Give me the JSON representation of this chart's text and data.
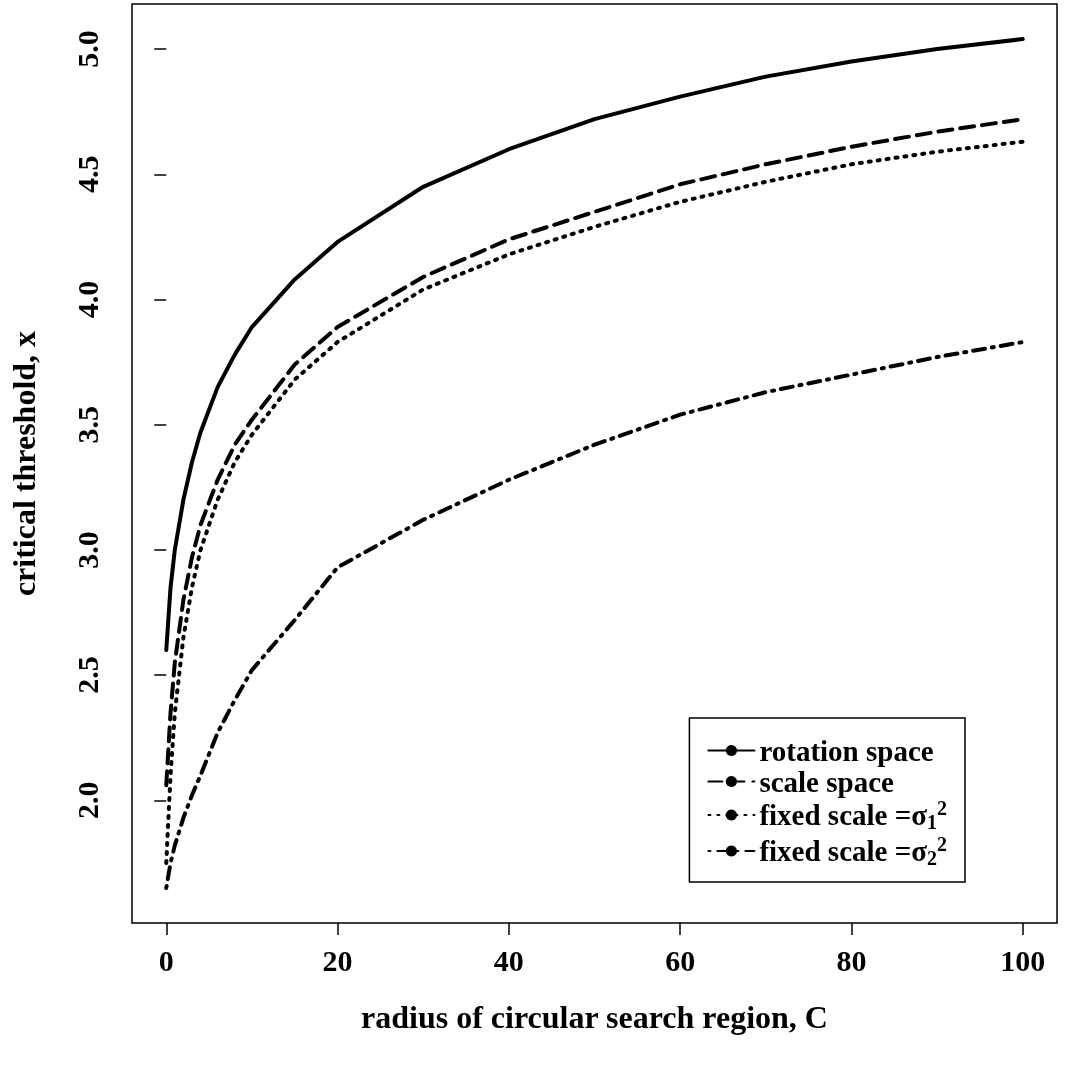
{
  "chart_data": {
    "type": "line",
    "xlabel": "radius of circular search region, C",
    "ylabel": "critical threshold, x",
    "x": [
      0,
      0.5,
      1,
      2,
      3,
      4,
      6,
      8,
      10,
      15,
      20,
      30,
      40,
      50,
      60,
      70,
      80,
      90,
      100
    ],
    "series": [
      {
        "name": "rotation space",
        "color": "#000000",
        "line_style": "solid",
        "values": [
          2.6,
          2.85,
          3.0,
          3.2,
          3.35,
          3.47,
          3.65,
          3.78,
          3.89,
          4.08,
          4.23,
          4.45,
          4.6,
          4.72,
          4.81,
          4.89,
          4.95,
          5.0,
          5.04
        ]
      },
      {
        "name": "scale space",
        "color": "#000000",
        "line_style": "dashed",
        "values": [
          2.06,
          2.35,
          2.55,
          2.8,
          2.97,
          3.1,
          3.28,
          3.42,
          3.52,
          3.74,
          3.89,
          4.09,
          4.24,
          4.35,
          4.46,
          4.54,
          4.61,
          4.67,
          4.72
        ]
      },
      {
        "name": "fixed scale =σ$_{1}$$^{2}$",
        "color": "#000000",
        "line_style": "dotted",
        "values": [
          1.75,
          2.1,
          2.35,
          2.65,
          2.85,
          3.0,
          3.2,
          3.35,
          3.46,
          3.68,
          3.83,
          4.04,
          4.18,
          4.29,
          4.39,
          4.47,
          4.54,
          4.59,
          4.63
        ]
      },
      {
        "name": "fixed scale =σ$_{2}$$^{2}$",
        "color": "#000000",
        "line_style": "dashdot",
        "values": [
          1.65,
          1.75,
          1.82,
          1.93,
          2.02,
          2.1,
          2.27,
          2.4,
          2.52,
          2.72,
          2.93,
          3.12,
          3.28,
          3.42,
          3.54,
          3.63,
          3.7,
          3.77,
          3.83
        ]
      }
    ],
    "xlim": [
      -4,
      104
    ],
    "xticks": [
      0,
      20,
      40,
      60,
      80,
      100
    ],
    "ylim": [
      1.51,
      5.18
    ],
    "yticks": [
      {
        "value": 2,
        "label": "2.0"
      },
      {
        "value": 2.5,
        "label": "2.5"
      },
      {
        "value": 3,
        "label": "3.0"
      },
      {
        "value": 3.5,
        "label": "3.5"
      },
      {
        "value": 4,
        "label": "4.0"
      },
      {
        "value": 4.5,
        "label": "4.5"
      },
      {
        "value": 5,
        "label": "5.0"
      }
    ],
    "grid": false,
    "legend": "bottom right",
    "marker": "none"
  }
}
